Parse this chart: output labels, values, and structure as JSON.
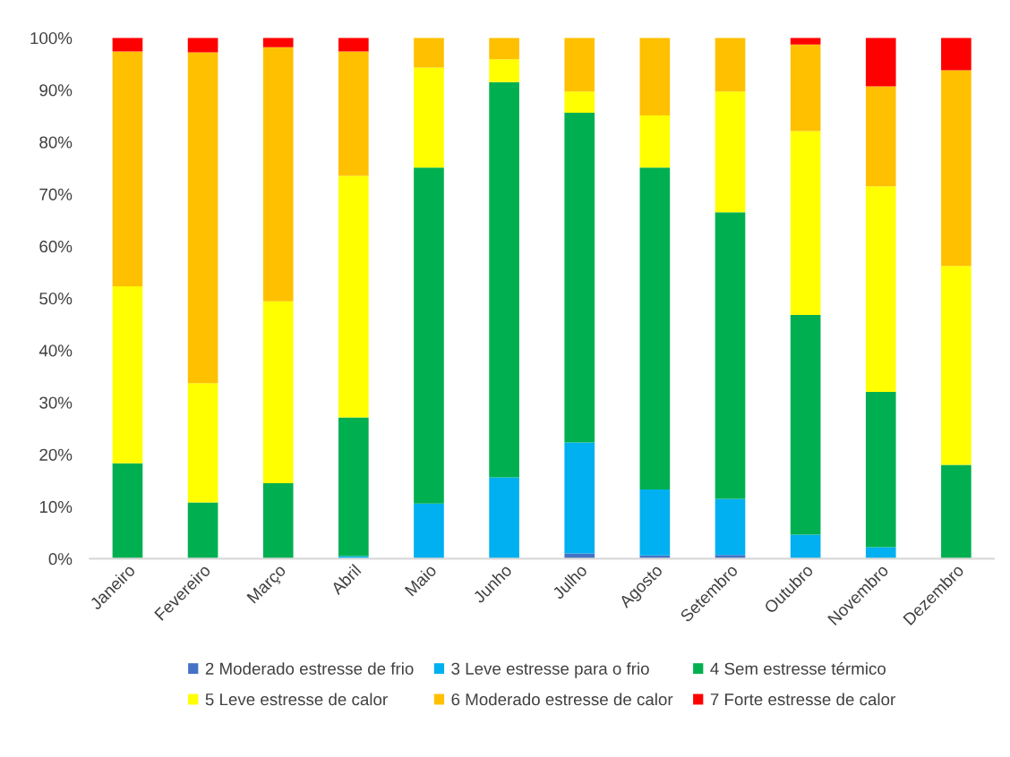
{
  "chart_data": {
    "type": "bar",
    "stacked": true,
    "categories": [
      "Janeiro",
      "Fevereiro",
      "Março",
      "Abril",
      "Maio",
      "Junho",
      "Julho",
      "Agosto",
      "Setembro",
      "Outubro",
      "Novembro",
      "Dezembro"
    ],
    "series": [
      {
        "name": "2 Moderado estresse de frio",
        "color": "#4472c4",
        "values": [
          null,
          null,
          null,
          null,
          null,
          null,
          1.0,
          0.6,
          0.7,
          null,
          null,
          null
        ]
      },
      {
        "name": "3 Leve estresse para o frio",
        "color": "#00b0f0",
        "values": [
          null,
          null,
          null,
          0.5,
          10.6,
          15.6,
          21.3,
          12.7,
          10.8,
          4.6,
          2.2,
          null
        ]
      },
      {
        "name": "4 Sem estresse térmico",
        "color": "#00b050",
        "values": [
          18.3,
          10.8,
          14.5,
          26.6,
          64.5,
          75.9,
          63.3,
          61.8,
          55.0,
          42.2,
          29.8,
          18.0
        ]
      },
      {
        "name": "5 Leve estresse de calor",
        "color": "#ffff00",
        "values": [
          34.0,
          22.9,
          34.9,
          46.4,
          19.2,
          4.4,
          4.1,
          10.0,
          23.2,
          35.3,
          39.5,
          38.2
        ]
      },
      {
        "name": "6 Moderado estresse de calor",
        "color": "#ffc000",
        "values": [
          45.1,
          63.5,
          48.8,
          23.9,
          5.7,
          4.1,
          10.3,
          14.9,
          10.3,
          16.6,
          19.2,
          37.6
        ]
      },
      {
        "name": "7 Forte estresse de calor",
        "color": "#ff0000",
        "values": [
          2.6,
          2.8,
          1.8,
          2.6,
          null,
          null,
          null,
          null,
          null,
          1.3,
          9.3,
          6.2
        ]
      }
    ],
    "ylim": [
      0,
      100
    ],
    "yticks": [
      {
        "value": 0,
        "label": "0%"
      },
      {
        "value": 10,
        "label": "10%"
      },
      {
        "value": 20,
        "label": "20%"
      },
      {
        "value": 30,
        "label": "30%"
      },
      {
        "value": 40,
        "label": "40%"
      },
      {
        "value": 50,
        "label": "50%"
      },
      {
        "value": 60,
        "label": "60%"
      },
      {
        "value": 70,
        "label": "70%"
      },
      {
        "value": 80,
        "label": "80%"
      },
      {
        "value": 90,
        "label": "90%"
      },
      {
        "value": 100,
        "label": "100%"
      }
    ],
    "grid": false,
    "legend": "bottom"
  }
}
